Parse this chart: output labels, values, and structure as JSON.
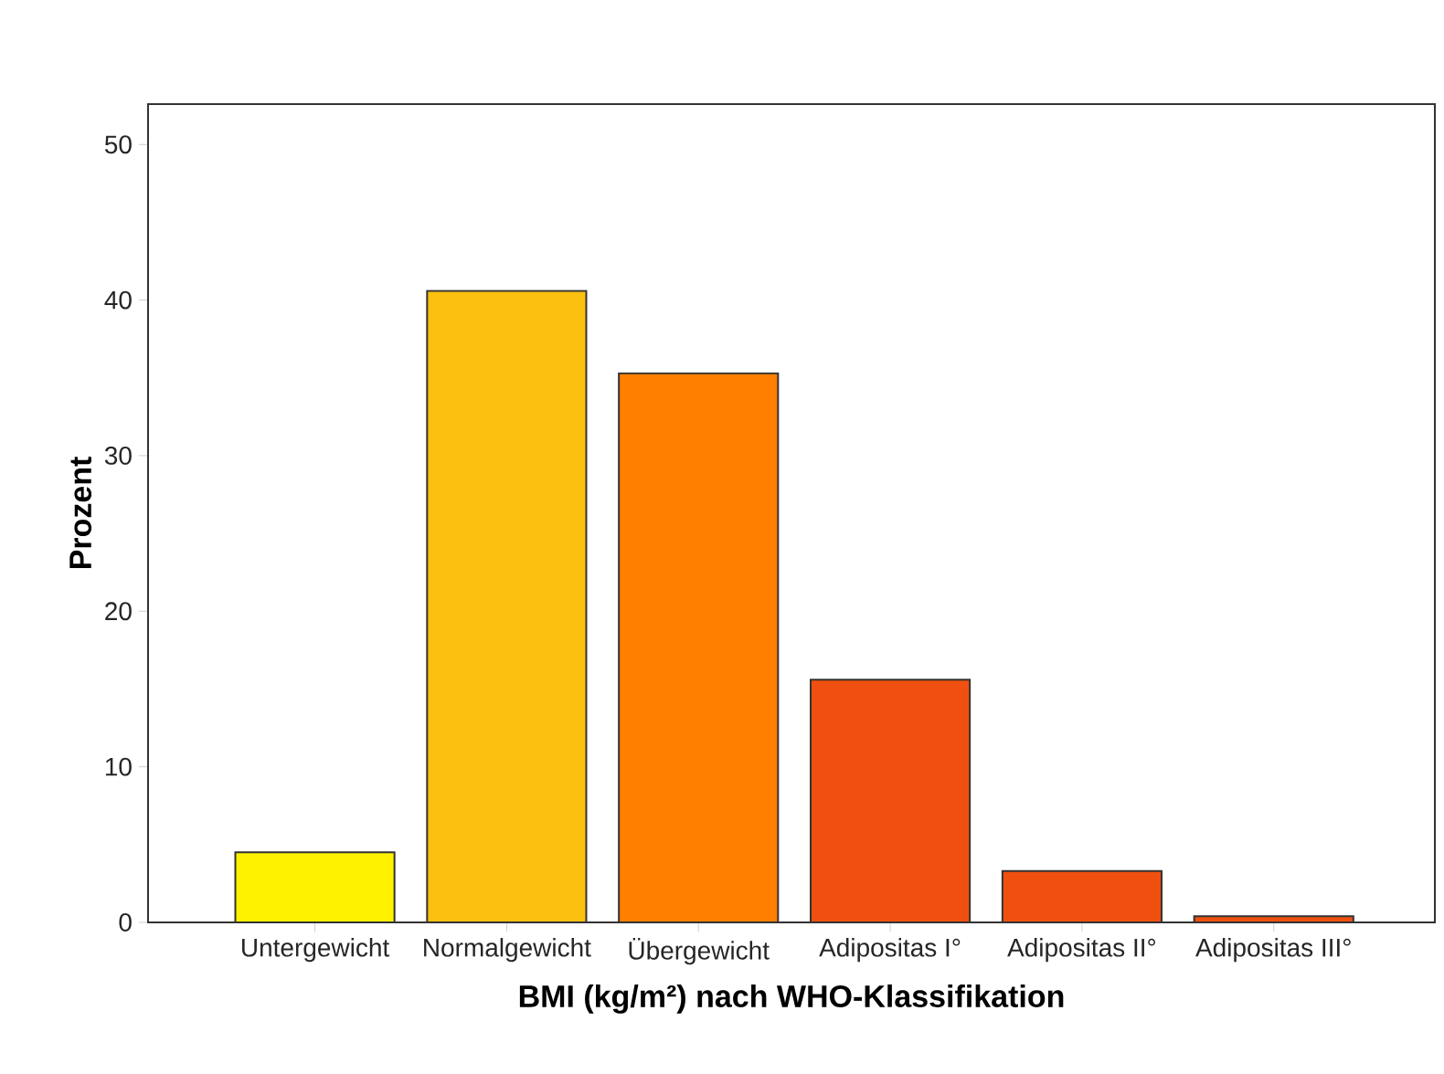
{
  "chart_data": {
    "type": "bar",
    "xlabel": "BMI (kg/m²) nach WHO-Klassifikation",
    "ylabel": "Prozent",
    "categories": [
      "Untergewicht",
      "Normalgewicht",
      "Übergewicht",
      "Adipositas I°",
      "Adipositas II°",
      "Adipositas III°"
    ],
    "values": [
      4.5,
      40.6,
      35.3,
      15.6,
      3.3,
      0.4
    ],
    "colors": [
      "#fff200",
      "#fcc010",
      "#ff7f00",
      "#f0500f",
      "#f0500f",
      "#f0500f"
    ],
    "ylim": [
      0,
      52.6
    ],
    "yticks": [
      0,
      10,
      20,
      30,
      40,
      50
    ],
    "grid": false
  }
}
